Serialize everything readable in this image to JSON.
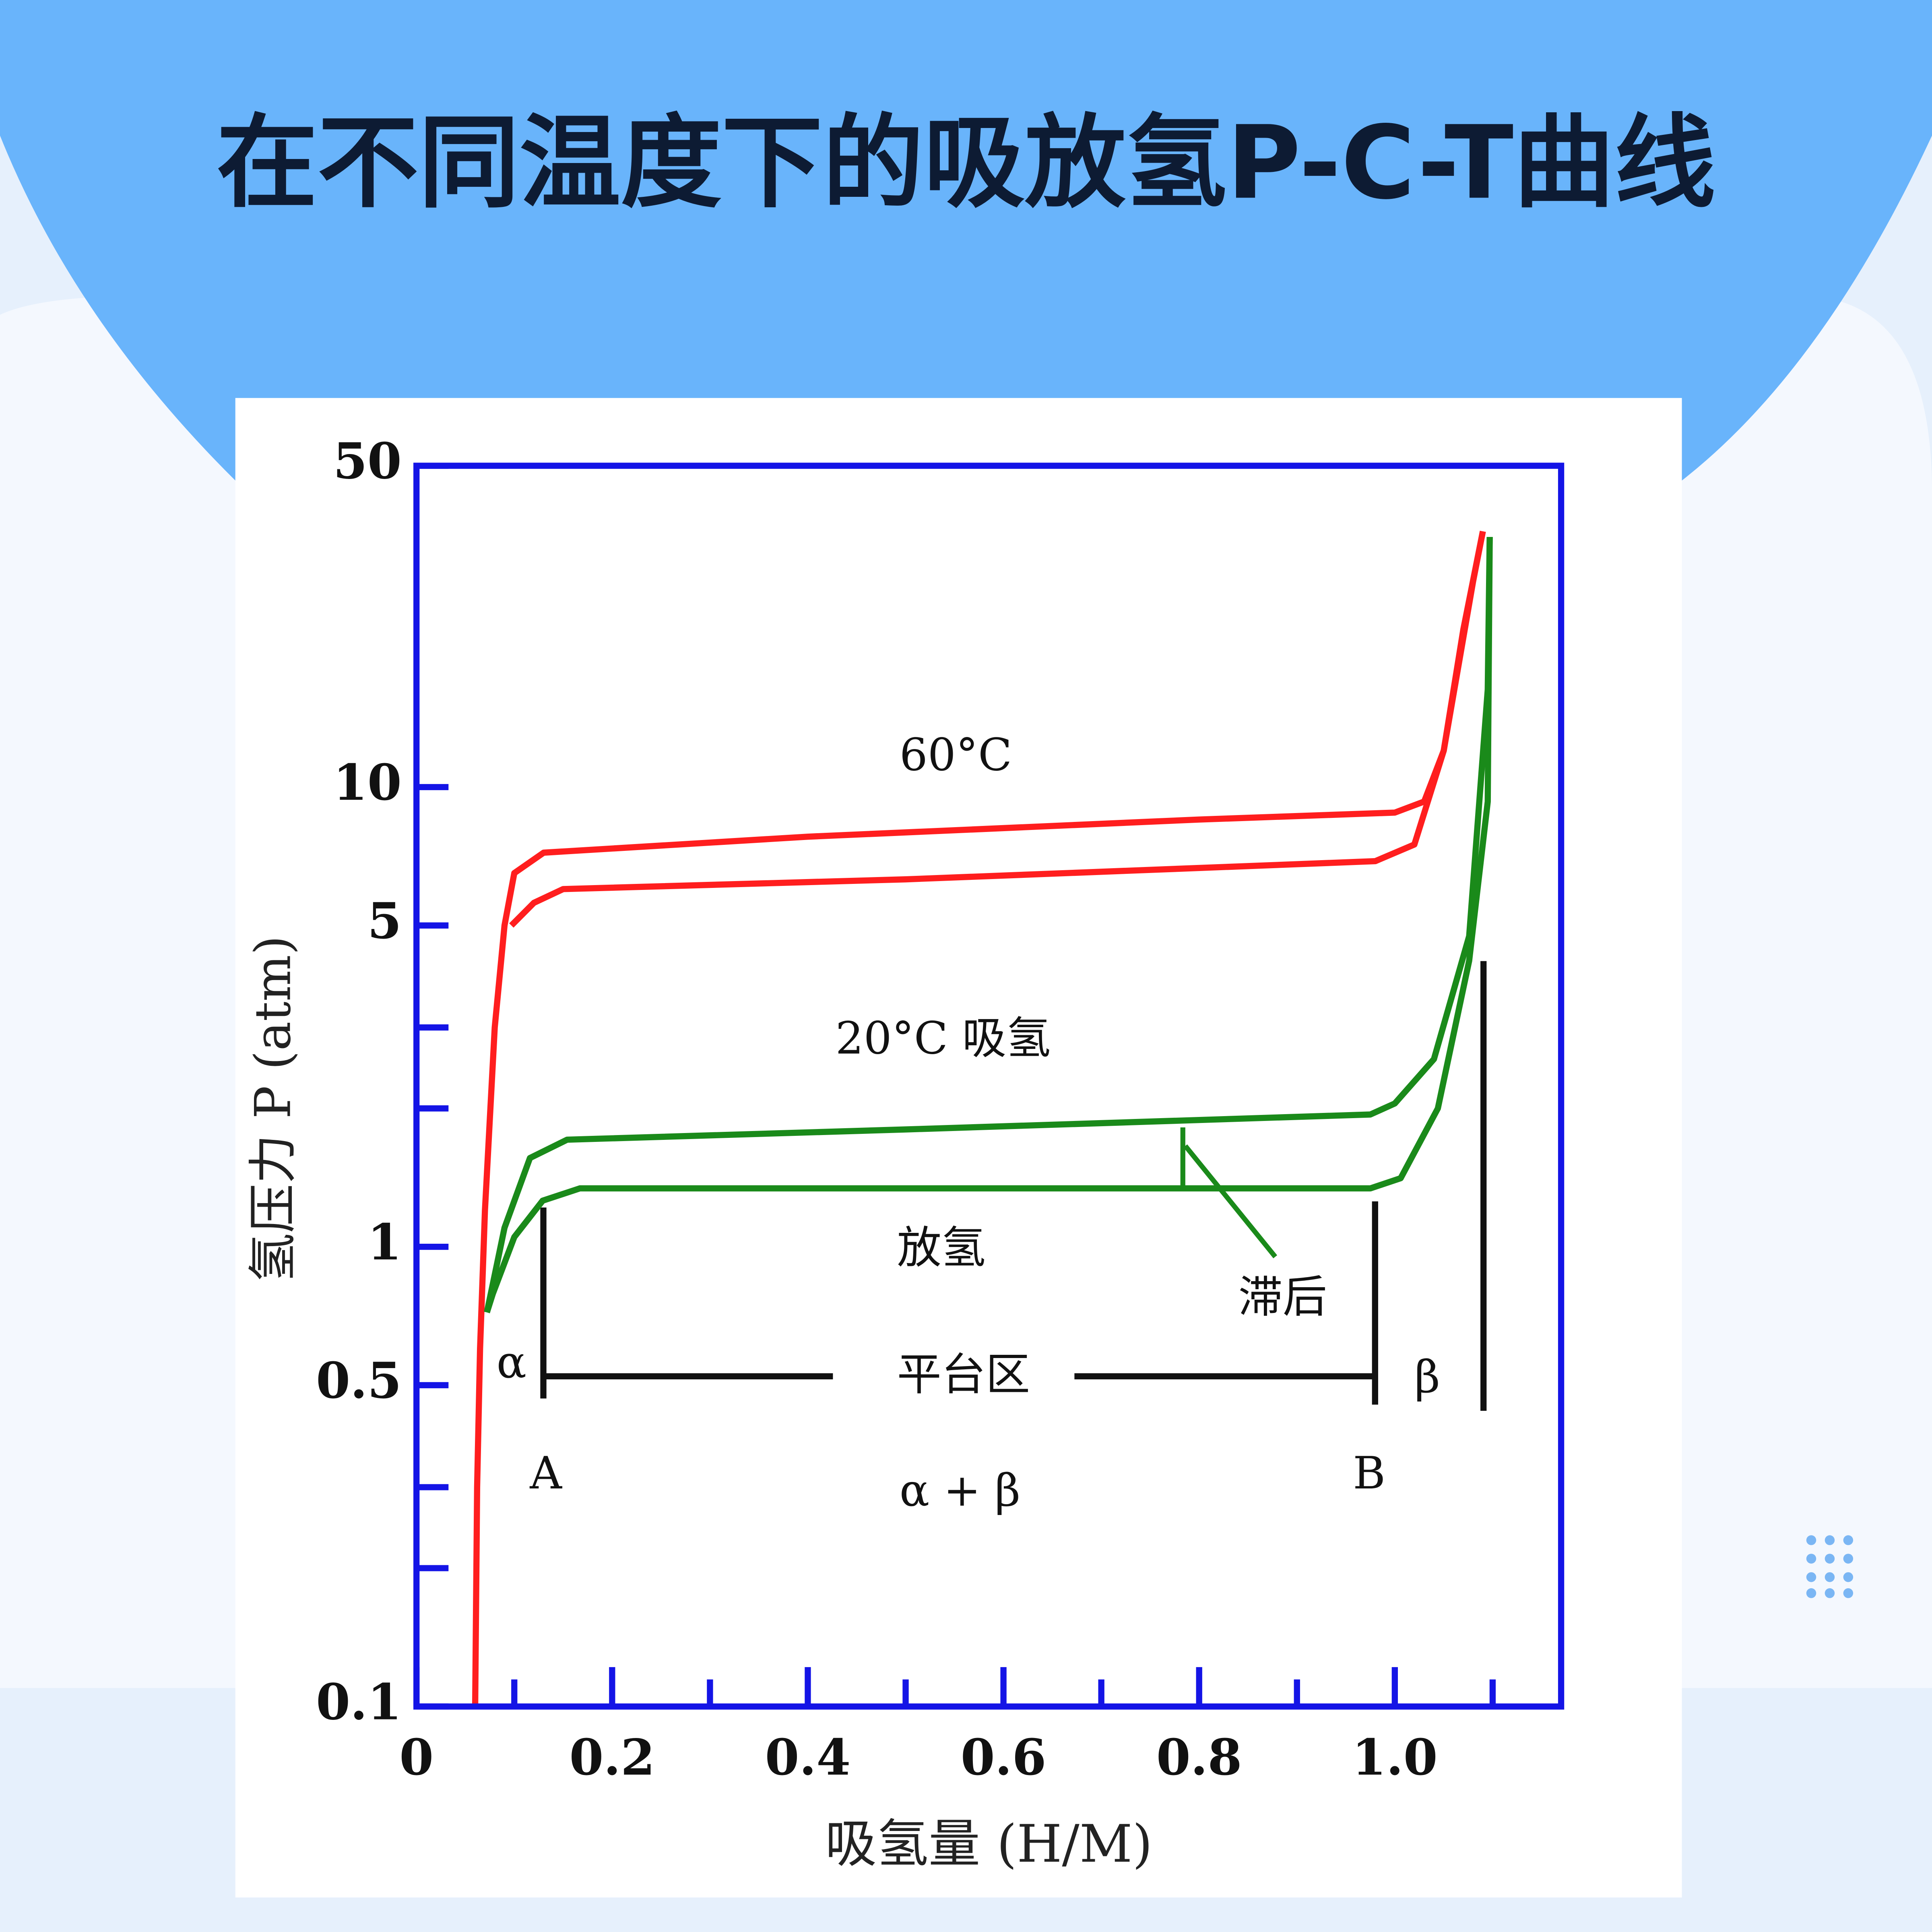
{
  "title": "在不同温度下的吸放氢P-C-T曲线",
  "chart_data": {
    "type": "line",
    "xlabel": "吸氢量 (H/M)",
    "ylabel": "氢压力 P (atm)",
    "xlim": [
      0,
      1.17
    ],
    "ylim": [
      0.1,
      50
    ],
    "ylog": true,
    "xticks": [
      0,
      0.2,
      0.4,
      0.6,
      0.8,
      {
        "value": 1,
        "label": "1.0"
      }
    ],
    "xminorticks": [
      0.1,
      0.3,
      0.5,
      0.7,
      0.9,
      1.1
    ],
    "yticks": [
      0.1,
      0.5,
      1,
      5,
      10,
      50
    ],
    "yminorticks": [
      0.2,
      0.3,
      2,
      3
    ],
    "axis_color": "#1414e6",
    "series": [
      {
        "color": "#ff1e1e",
        "x": [
          0.06,
          0.062,
          0.065,
          0.07,
          0.08,
          0.09,
          0.1,
          0.13,
          0.4,
          0.8,
          1.0,
          1.03,
          1.05,
          1.07,
          1.09
        ],
        "values": [
          0.1,
          0.3,
          0.6,
          1.2,
          3,
          5,
          6.5,
          7.2,
          7.8,
          8.5,
          8.8,
          9.3,
          12,
          22,
          36
        ]
      },
      {
        "color": "#ff1e1e",
        "x": [
          0.097,
          0.12,
          0.15,
          0.5,
          0.98,
          1.02,
          1.05,
          1.08,
          1.09
        ],
        "values": [
          5,
          5.6,
          6,
          6.3,
          6.9,
          7.5,
          12,
          28,
          36
        ]
      },
      {
        "color": "#1a8a1a",
        "x": [
          0.072,
          0.09,
          0.116,
          0.154,
          0.5,
          0.975,
          1.0,
          1.04,
          1.076,
          1.095,
          1.097
        ],
        "values": [
          0.72,
          1.1,
          1.56,
          1.71,
          1.8,
          1.94,
          2.05,
          2.56,
          4.74,
          16.3,
          35
        ]
      },
      {
        "color": "#1a8a1a",
        "x": [
          0.072,
          0.078,
          0.1,
          0.129,
          0.167,
          0.5,
          0.975,
          1.006,
          1.044,
          1.076,
          1.095,
          1.097
        ],
        "values": [
          0.72,
          0.79,
          1.05,
          1.26,
          1.34,
          1.34,
          1.34,
          1.41,
          2.0,
          4.19,
          9.3,
          35
        ]
      }
    ],
    "annotations": [
      "60°C",
      "20°C 吸氢",
      "放氢",
      "滞后",
      "平台区",
      "α",
      "β",
      "A",
      "B",
      "α + β"
    ]
  }
}
